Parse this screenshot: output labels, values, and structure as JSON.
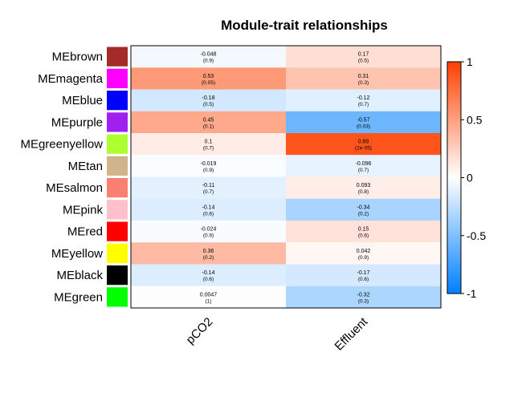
{
  "chart_data": {
    "type": "heatmap",
    "title": "Module-trait relationships",
    "columns": [
      "pCO2",
      "Effluent"
    ],
    "rows": [
      {
        "module": "MEbrown",
        "color": "#a52a2a",
        "values": [
          -0.048,
          0.17
        ],
        "labels": [
          "-0.048",
          "0.17"
        ],
        "pvalues": [
          "(0.9)",
          "(0.5)"
        ]
      },
      {
        "module": "MEmagenta",
        "color": "#ff00ff",
        "values": [
          0.53,
          0.31
        ],
        "labels": [
          "0.53",
          "0.31"
        ],
        "pvalues": [
          "(0.05)",
          "(0.3)"
        ]
      },
      {
        "module": "MEblue",
        "color": "#0000ff",
        "values": [
          -0.18,
          -0.12
        ],
        "labels": [
          "-0.18",
          "-0.12"
        ],
        "pvalues": [
          "(0.5)",
          "(0.7)"
        ]
      },
      {
        "module": "MEpurple",
        "color": "#a020f0",
        "values": [
          0.45,
          -0.57
        ],
        "labels": [
          "0.45",
          "-0.57"
        ],
        "pvalues": [
          "(0.1)",
          "(0.03)"
        ]
      },
      {
        "module": "MEgreenyellow",
        "color": "#adff2f",
        "values": [
          0.1,
          0.89
        ],
        "labels": [
          "0.1",
          "0.89"
        ],
        "pvalues": [
          "(0.7)",
          "(2e-05)"
        ]
      },
      {
        "module": "MEtan",
        "color": "#d2b48c",
        "values": [
          -0.019,
          -0.096
        ],
        "labels": [
          "-0.019",
          "-0.096"
        ],
        "pvalues": [
          "(0.9)",
          "(0.7)"
        ]
      },
      {
        "module": "MEsalmon",
        "color": "#fa8072",
        "values": [
          -0.11,
          0.093
        ],
        "labels": [
          "-0.11",
          "0.093"
        ],
        "pvalues": [
          "(0.7)",
          "(0.8)"
        ]
      },
      {
        "module": "MEpink",
        "color": "#ffc0cb",
        "values": [
          -0.14,
          -0.34
        ],
        "labels": [
          "-0.14",
          "-0.34"
        ],
        "pvalues": [
          "(0.6)",
          "(0.2)"
        ]
      },
      {
        "module": "MEred",
        "color": "#ff0000",
        "values": [
          -0.024,
          0.15
        ],
        "labels": [
          "-0.024",
          "0.15"
        ],
        "pvalues": [
          "(0.9)",
          "(0.6)"
        ]
      },
      {
        "module": "MEyellow",
        "color": "#ffff00",
        "values": [
          0.36,
          0.042
        ],
        "labels": [
          "0.36",
          "0.042"
        ],
        "pvalues": [
          "(0.2)",
          "(0.9)"
        ]
      },
      {
        "module": "MEblack",
        "color": "#000000",
        "values": [
          -0.14,
          -0.17
        ],
        "labels": [
          "-0.14",
          "-0.17"
        ],
        "pvalues": [
          "(0.6)",
          "(0.6)"
        ]
      },
      {
        "module": "MEgreen",
        "color": "#00ff00",
        "values": [
          0.0047,
          -0.32
        ],
        "labels": [
          "0.0047",
          "-0.32"
        ],
        "pvalues": [
          "(1)",
          "(0.3)"
        ]
      }
    ],
    "colorbar": {
      "range": [
        -1,
        1
      ],
      "ticks": [
        "1",
        "0.5",
        "0",
        "-0.5",
        "-1"
      ],
      "tick_values": [
        1,
        0.5,
        0,
        -0.5,
        -1
      ],
      "colors": {
        "negative": "#0080ff",
        "zero": "#ffffff",
        "positive": "#ff4000"
      }
    }
  }
}
